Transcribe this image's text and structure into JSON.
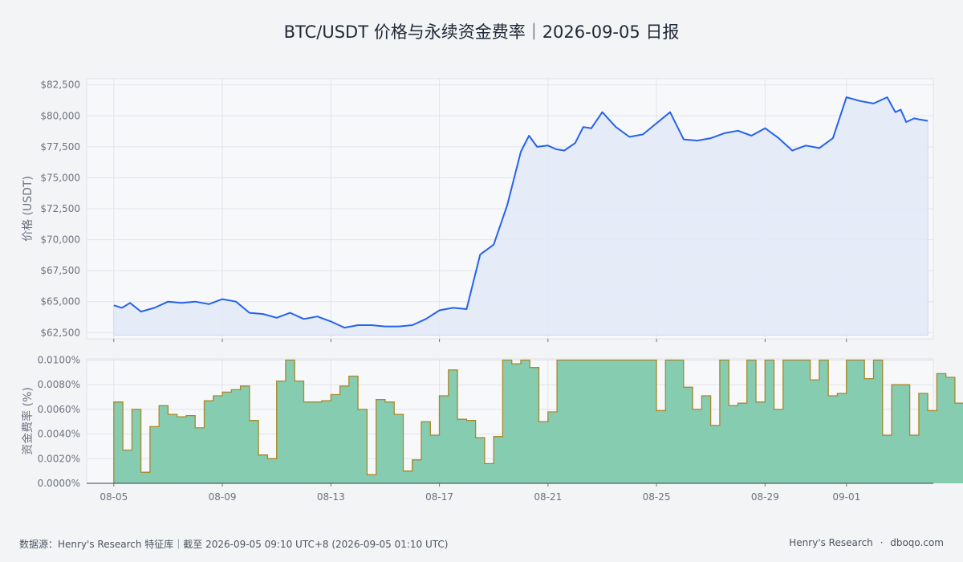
{
  "title": "BTC/USDT 价格与永续资金费率｜2026-09-05 日报",
  "footer": {
    "source": "数据源：Henry's Research 特征库｜截至 2026-09-05 09:10 UTC+8 (2026-09-05 01:10 UTC)",
    "brand": "Henry's Research",
    "separator": "·",
    "site": "dboqo.com"
  },
  "chart_data": [
    {
      "type": "line",
      "name": "price",
      "ylabel": "价格 (USDT)",
      "ylim": [
        62000,
        83000
      ],
      "yticks": [
        62500,
        65000,
        67500,
        70000,
        72500,
        75000,
        77500,
        80000,
        82500
      ],
      "ytick_labels": [
        "$62,500",
        "$65,000",
        "$67,500",
        "$70,000",
        "$72,500",
        "$75,000",
        "$77,500",
        "$80,000",
        "$82,500"
      ],
      "xlim": [
        -1,
        30.2
      ],
      "xticks": [
        0,
        4,
        8,
        12,
        16,
        20,
        24,
        27,
        31
      ],
      "xtick_labels": [
        "08-05",
        "08-09",
        "08-13",
        "08-17",
        "08-21",
        "08-25",
        "08-29",
        "09-01",
        "09-05"
      ],
      "grid": true,
      "x": [
        0,
        0.3,
        0.6,
        1,
        1.5,
        2,
        2.5,
        3,
        3.5,
        4,
        4.5,
        5,
        5.5,
        6,
        6.5,
        7,
        7.5,
        8,
        8.5,
        9,
        9.5,
        10,
        10.5,
        11,
        11.5,
        12,
        12.5,
        13,
        13.5,
        14,
        14.5,
        15,
        15.3,
        15.6,
        16,
        16.3,
        16.6,
        17,
        17.3,
        17.6,
        18,
        18.5,
        19,
        19.5,
        20,
        20.5,
        21,
        21.5,
        22,
        22.5,
        23,
        23.5,
        24,
        24.5,
        25,
        25.5,
        26,
        26.5,
        27,
        27.5,
        28,
        28.5,
        28.8,
        29,
        29.2,
        29.5,
        29.7,
        30
      ],
      "values": [
        64700,
        64500,
        64900,
        64200,
        64500,
        65000,
        64900,
        65000,
        64800,
        65200,
        65000,
        64100,
        64000,
        63700,
        64100,
        63600,
        63800,
        63400,
        62900,
        63100,
        63100,
        63000,
        63000,
        63100,
        63600,
        64300,
        64500,
        64400,
        68800,
        69600,
        72800,
        77100,
        78400,
        77500,
        77600,
        77300,
        77200,
        77800,
        79100,
        79000,
        80300,
        79100,
        78300,
        78500,
        79400,
        80300,
        78100,
        78000,
        78200,
        78600,
        78800,
        78400,
        79000,
        78200,
        77200,
        77600,
        77400,
        78200,
        81500,
        81200,
        81000,
        81500,
        80300,
        80500,
        79500,
        79800,
        79700,
        79600
      ]
    },
    {
      "type": "area",
      "name": "funding",
      "ylabel": "资金费率 (%)",
      "ylim": [
        0,
        0.0101
      ],
      "yticks": [
        0,
        0.002,
        0.004,
        0.006,
        0.008,
        0.01
      ],
      "ytick_labels": [
        "0.0000%",
        "0.0020%",
        "0.0040%",
        "0.0060%",
        "0.0080%",
        "0.0100%"
      ],
      "xlim": [
        -1,
        30.2
      ],
      "grid": true,
      "step": 0.3333,
      "values": [
        0.0066,
        0.0027,
        0.006,
        0.0009,
        0.0046,
        0.0063,
        0.0056,
        0.0054,
        0.0055,
        0.0045,
        0.0067,
        0.0071,
        0.0074,
        0.0076,
        0.0079,
        0.0051,
        0.0023,
        0.002,
        0.0083,
        0.01,
        0.0083,
        0.0066,
        0.0066,
        0.0067,
        0.0072,
        0.0079,
        0.0087,
        0.006,
        0.0007,
        0.0068,
        0.0066,
        0.0056,
        0.001,
        0.0019,
        0.005,
        0.0039,
        0.0071,
        0.0092,
        0.0052,
        0.0051,
        0.0037,
        0.0016,
        0.0038,
        0.01,
        0.0097,
        0.01,
        0.0094,
        0.005,
        0.0058,
        0.01,
        0.01,
        0.01,
        0.01,
        0.01,
        0.01,
        0.01,
        0.01,
        0.01,
        0.01,
        0.01,
        0.0059,
        0.01,
        0.01,
        0.0078,
        0.006,
        0.0071,
        0.0047,
        0.01,
        0.0063,
        0.0065,
        0.01,
        0.0066,
        0.01,
        0.006,
        0.01,
        0.01,
        0.01,
        0.0084,
        0.01,
        0.0071,
        0.0073,
        0.01,
        0.01,
        0.0085,
        0.01,
        0.0039,
        0.008,
        0.008,
        0.0039,
        0.0073,
        0.0059,
        0.0089,
        0.0086,
        0.0065,
        0.0045,
        0.0011
      ]
    }
  ],
  "colors": {
    "price_line": "#2563eb",
    "price_fill": "#e3e9f7",
    "funding_fill": "#86ccb0",
    "funding_line": "#a8882a",
    "plot_bg": "#f7f8fa",
    "grid": "#e1e4ea",
    "axis_text": "#6b7280"
  }
}
